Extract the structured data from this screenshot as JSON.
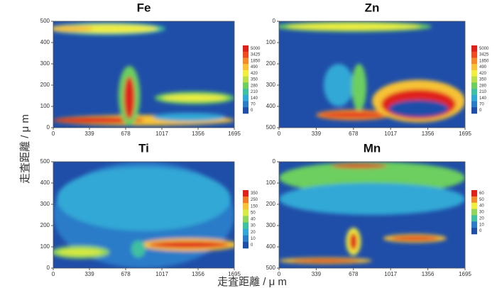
{
  "figure": {
    "xlabel": "走査距離 / μ m",
    "ylabel": "走査距離 / μ m"
  },
  "chart_data": [
    {
      "type": "heatmap",
      "title": "Fe",
      "xlim": [
        0,
        1695
      ],
      "xticks": [
        0,
        339,
        678,
        1017,
        1356,
        1695
      ],
      "ylim": [
        0,
        500
      ],
      "yticks": [
        0,
        100,
        200,
        300,
        400,
        500
      ],
      "y_inverted": false,
      "colorbar": {
        "ticks": [
          5000,
          3425,
          1850,
          490,
          420,
          350,
          280,
          210,
          140,
          70,
          0
        ],
        "colors": [
          "#e0201b",
          "#f04a20",
          "#f58a2a",
          "#f7c235",
          "#f2ee3c",
          "#b9e04a",
          "#6ccf5e",
          "#3fc0a0",
          "#32a8d6",
          "#2a7cc8",
          "#1f4ea8"
        ]
      }
    },
    {
      "type": "heatmap",
      "title": "Zn",
      "xlim": [
        0,
        1695
      ],
      "xticks": [
        0,
        339,
        678,
        1017,
        1356,
        1695
      ],
      "ylim": [
        0,
        500
      ],
      "yticks": [
        0,
        100,
        200,
        300,
        400,
        500
      ],
      "y_inverted": true,
      "colorbar": {
        "ticks": [
          5000,
          3425,
          1850,
          490,
          420,
          350,
          280,
          210,
          140,
          70,
          0
        ],
        "colors": [
          "#e0201b",
          "#f04a20",
          "#f58a2a",
          "#f7c235",
          "#f2ee3c",
          "#b9e04a",
          "#6ccf5e",
          "#3fc0a0",
          "#32a8d6",
          "#2a7cc8",
          "#1f4ea8"
        ]
      }
    },
    {
      "type": "heatmap",
      "title": "Ti",
      "xlim": [
        0,
        1695
      ],
      "xticks": [
        0,
        339,
        678,
        1017,
        1356,
        1695
      ],
      "ylim": [
        0,
        500
      ],
      "yticks": [
        0,
        100,
        200,
        300,
        400,
        500
      ],
      "y_inverted": false,
      "colorbar": {
        "ticks": [
          350,
          250,
          150,
          50,
          40,
          30,
          20,
          10,
          0
        ],
        "colors": [
          "#e0201b",
          "#f07a26",
          "#f7c235",
          "#d9ea40",
          "#8fd65a",
          "#3fc0a0",
          "#32a8d6",
          "#2a7cc8",
          "#1f4ea8"
        ]
      }
    },
    {
      "type": "heatmap",
      "title": "Mn",
      "xlim": [
        0,
        1695
      ],
      "xticks": [
        0,
        339,
        678,
        1017,
        1356,
        1695
      ],
      "ylim": [
        0,
        500
      ],
      "yticks": [
        0,
        100,
        200,
        300,
        400,
        500
      ],
      "y_inverted": true,
      "colorbar": {
        "ticks": [
          60,
          50,
          40,
          30,
          20,
          10,
          0
        ],
        "colors": [
          "#e0201b",
          "#f58a2a",
          "#f2ee3c",
          "#8fd65a",
          "#3fc0a0",
          "#2a7cc8",
          "#1f4ea8"
        ]
      }
    }
  ]
}
